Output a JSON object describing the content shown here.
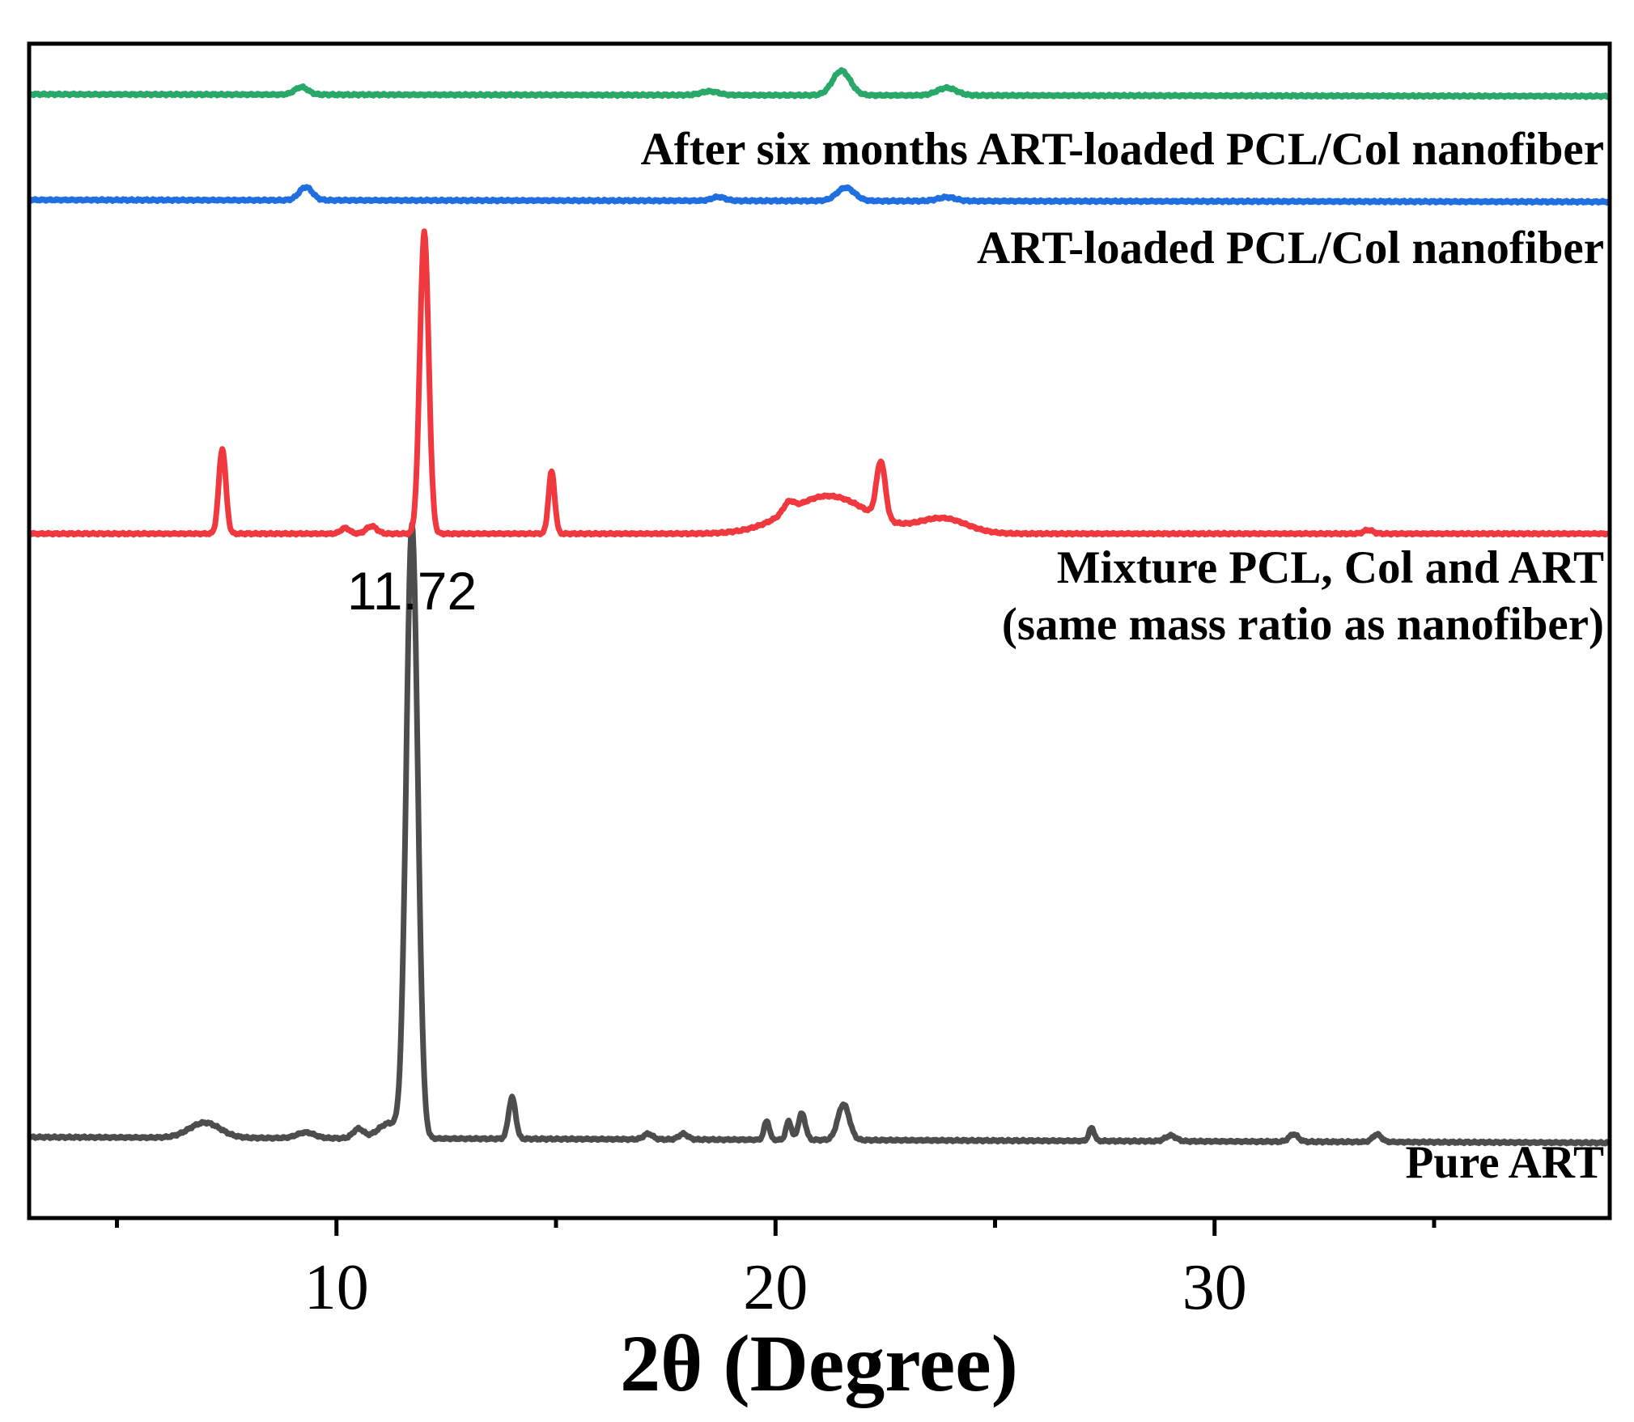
{
  "chart_data": {
    "type": "line",
    "title": "",
    "xlabel": "2θ (Degree)",
    "ylabel": "",
    "xlim": [
      3,
      39
    ],
    "xticks": [
      10,
      20,
      30
    ],
    "xtick_labels": [
      "10",
      "20",
      "30"
    ],
    "minor_xticks": [
      5,
      15,
      25,
      35
    ],
    "grid": false,
    "annotation": {
      "text": "11.72",
      "x": 11.72,
      "series": "Pure ART"
    },
    "series": [
      {
        "name": "Pure ART",
        "label_lines": [
          "Pure ART"
        ],
        "color": "#4d4d4d",
        "baseline": 0,
        "baseline_end": -0.03,
        "peaks": [
          {
            "x": 7.0,
            "h": 0.08,
            "w": 0.35
          },
          {
            "x": 9.3,
            "h": 0.03,
            "w": 0.2
          },
          {
            "x": 10.5,
            "h": 0.05,
            "w": 0.12
          },
          {
            "x": 11.2,
            "h": 0.08,
            "w": 0.25
          },
          {
            "x": 11.72,
            "h": 3.25,
            "w": 0.13
          },
          {
            "x": 14.0,
            "h": 0.22,
            "w": 0.08
          },
          {
            "x": 17.1,
            "h": 0.03,
            "w": 0.1
          },
          {
            "x": 17.9,
            "h": 0.03,
            "w": 0.1
          },
          {
            "x": 19.8,
            "h": 0.1,
            "w": 0.06
          },
          {
            "x": 20.3,
            "h": 0.1,
            "w": 0.06
          },
          {
            "x": 20.6,
            "h": 0.14,
            "w": 0.08
          },
          {
            "x": 21.55,
            "h": 0.19,
            "w": 0.13
          },
          {
            "x": 27.2,
            "h": 0.07,
            "w": 0.06
          },
          {
            "x": 29.0,
            "h": 0.03,
            "w": 0.12
          },
          {
            "x": 31.8,
            "h": 0.04,
            "w": 0.1
          },
          {
            "x": 33.7,
            "h": 0.04,
            "w": 0.1
          }
        ]
      },
      {
        "name": "Mixture PCL, Col and ART (same mass ratio as nanofiber)",
        "label_lines": [
          "Mixture PCL, Col and ART",
          "(same mass ratio as nanofiber)"
        ],
        "color": "#f0393f",
        "baseline": 3.2,
        "baseline_end": 3.2,
        "peaks": [
          {
            "x": 7.4,
            "h": 0.45,
            "w": 0.08
          },
          {
            "x": 10.2,
            "h": 0.03,
            "w": 0.1
          },
          {
            "x": 10.8,
            "h": 0.04,
            "w": 0.12
          },
          {
            "x": 12.0,
            "h": 1.6,
            "w": 0.1
          },
          {
            "x": 14.9,
            "h": 0.33,
            "w": 0.07
          },
          {
            "x": 21.2,
            "h": 0.2,
            "w": 0.9
          },
          {
            "x": 22.4,
            "h": 0.3,
            "w": 0.1
          },
          {
            "x": 23.8,
            "h": 0.08,
            "w": 0.55
          },
          {
            "x": 20.3,
            "h": 0.05,
            "w": 0.12
          },
          {
            "x": 33.5,
            "h": 0.02,
            "w": 0.1
          }
        ]
      },
      {
        "name": "ART-loaded PCL/Col nanofiber",
        "label_lines": [
          "ART-loaded PCL/Col nanofiber"
        ],
        "color": "#1f6fe0",
        "baseline": 4.97,
        "baseline_end": 4.96,
        "peaks": [
          {
            "x": 9.3,
            "h": 0.07,
            "w": 0.15
          },
          {
            "x": 18.7,
            "h": 0.02,
            "w": 0.15
          },
          {
            "x": 21.6,
            "h": 0.07,
            "w": 0.2
          },
          {
            "x": 23.9,
            "h": 0.02,
            "w": 0.2
          }
        ]
      },
      {
        "name": "After six months ART-loaded PCL/Col nanofiber",
        "label_lines": [
          "After six months ART-loaded PCL/Col nanofiber"
        ],
        "color": "#2aa86a",
        "baseline": 5.53,
        "baseline_end": 5.52,
        "peaks": [
          {
            "x": 9.2,
            "h": 0.04,
            "w": 0.15
          },
          {
            "x": 18.5,
            "h": 0.02,
            "w": 0.2
          },
          {
            "x": 21.5,
            "h": 0.13,
            "w": 0.2
          },
          {
            "x": 23.9,
            "h": 0.04,
            "w": 0.22
          }
        ]
      }
    ]
  }
}
